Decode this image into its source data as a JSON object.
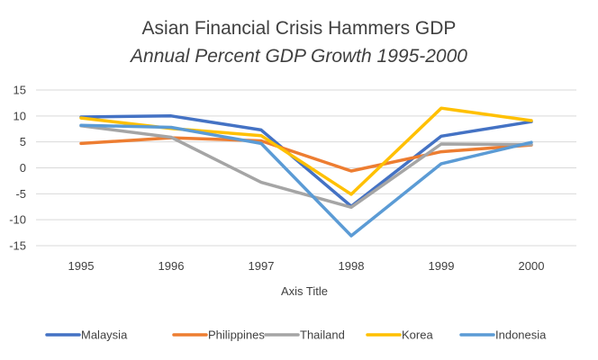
{
  "chart_data": {
    "type": "line",
    "title": "Asian Financial Crisis Hammers GDP",
    "subtitle": "Annual  Percent GDP Growth 1995-2000",
    "xlabel": "Axis Title",
    "ylabel": "",
    "categories": [
      "1995",
      "1996",
      "1997",
      "1998",
      "1999",
      "2000"
    ],
    "ylim": [
      -15,
      15
    ],
    "yticks": [
      15,
      10,
      5,
      0,
      -5,
      -10,
      -15
    ],
    "grid": true,
    "legend": "bottom",
    "series": [
      {
        "name": "Malaysia",
        "color": "#4472C4",
        "values": [
          9.8,
          10.0,
          7.3,
          -7.4,
          6.1,
          8.9
        ]
      },
      {
        "name": "Philippines",
        "color": "#ED7D31",
        "values": [
          4.7,
          5.8,
          5.2,
          -0.6,
          3.1,
          4.4
        ]
      },
      {
        "name": "Thailand",
        "color": "#A5A5A5",
        "values": [
          8.1,
          5.9,
          -2.8,
          -7.6,
          4.6,
          4.5
        ]
      },
      {
        "name": "Korea",
        "color": "#FFC000",
        "values": [
          9.6,
          7.6,
          6.2,
          -5.1,
          11.5,
          9.1
        ]
      },
      {
        "name": "Indonesia",
        "color": "#5B9BD5",
        "values": [
          8.2,
          7.8,
          4.7,
          -13.1,
          0.8,
          4.9
        ]
      }
    ]
  }
}
